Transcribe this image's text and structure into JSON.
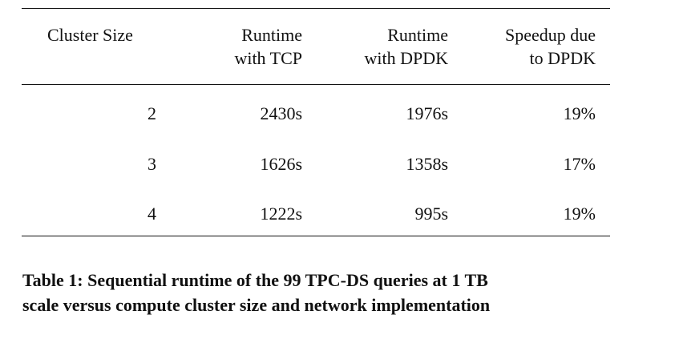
{
  "table": {
    "headers": [
      {
        "lines": [
          "Cluster Size"
        ]
      },
      {
        "lines": [
          "Runtime",
          "with TCP"
        ]
      },
      {
        "lines": [
          "Runtime",
          "with DPDK"
        ]
      },
      {
        "lines": [
          "Speedup due",
          "to DPDK"
        ]
      }
    ],
    "rows": [
      {
        "cluster_size": "2",
        "runtime_tcp": "2430s",
        "runtime_dpdk": "1976s",
        "speedup": "19%"
      },
      {
        "cluster_size": "3",
        "runtime_tcp": "1626s",
        "runtime_dpdk": "1358s",
        "speedup": "17%"
      },
      {
        "cluster_size": "4",
        "runtime_tcp": "1222s",
        "runtime_dpdk": "995s",
        "speedup": "19%"
      }
    ]
  },
  "caption": {
    "line1": "Table 1: Sequential runtime of the 99 TPC-DS queries at 1 TB",
    "line2": "scale versus compute cluster size and network implementation"
  }
}
